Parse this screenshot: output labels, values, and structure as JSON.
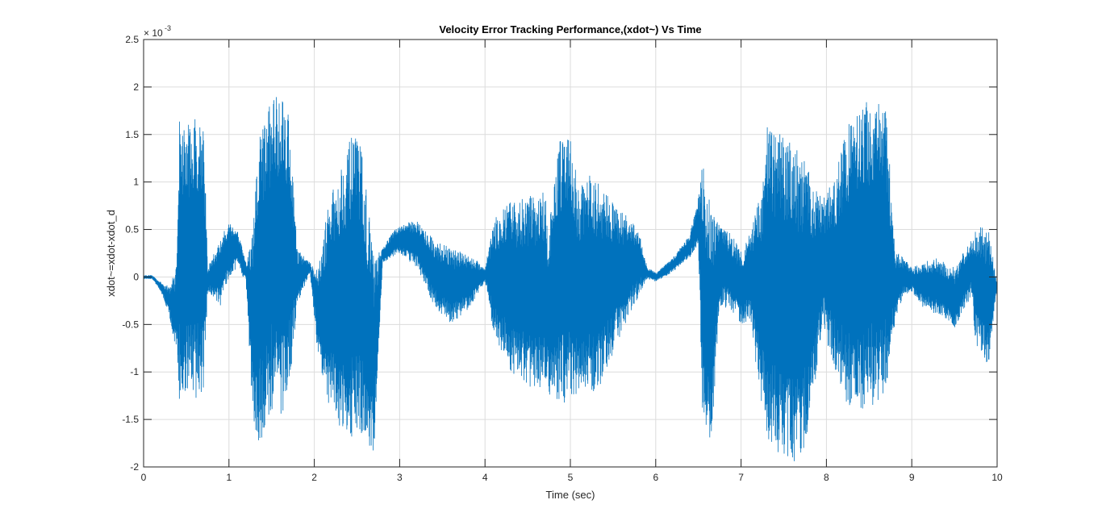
{
  "chart_data": {
    "type": "line",
    "title": "Velocity Error Tracking Performance,(xdot~) Vs Time",
    "xlabel": "Time (sec)",
    "ylabel": "xdot~=xdot-xdot_d",
    "y_exponent_base": "× 10",
    "y_exponent_power": "-3",
    "xlim": [
      0,
      10
    ],
    "ylim": [
      -2,
      2.5
    ],
    "xticks": [
      0,
      1,
      2,
      3,
      4,
      5,
      6,
      7,
      8,
      9,
      10
    ],
    "yticks": [
      -2,
      -1.5,
      -1,
      -0.5,
      0,
      0.5,
      1,
      1.5,
      2,
      2.5
    ],
    "grid": true,
    "line_color": "#0072BD",
    "series": [
      {
        "envelope_x": [
          0.0,
          0.1,
          0.2,
          0.3,
          0.38,
          0.42,
          0.5,
          0.6,
          0.7,
          0.75,
          0.9,
          1.0,
          1.1,
          1.2,
          1.28,
          1.35,
          1.5,
          1.6,
          1.7,
          1.8,
          1.95,
          2.05,
          2.15,
          2.3,
          2.45,
          2.55,
          2.7,
          2.8,
          2.9,
          3.0,
          3.2,
          3.4,
          3.6,
          3.8,
          4.0,
          4.1,
          4.3,
          4.5,
          4.6,
          4.7,
          4.75,
          4.85,
          5.0,
          5.1,
          5.2,
          5.3,
          5.5,
          5.7,
          5.8,
          5.9,
          6.0,
          6.2,
          6.4,
          6.5,
          6.55,
          6.65,
          6.75,
          6.85,
          7.0,
          7.1,
          7.25,
          7.3,
          7.5,
          7.6,
          7.7,
          7.8,
          7.95,
          8.1,
          8.25,
          8.4,
          8.55,
          8.7,
          8.8,
          8.9,
          9.0,
          9.1,
          9.3,
          9.5,
          9.7,
          9.75,
          9.9,
          10.0
        ],
        "envelope_upper": [
          0.02,
          0.02,
          -0.05,
          -0.1,
          0.1,
          1.7,
          1.6,
          1.7,
          1.75,
          0.1,
          0.4,
          0.6,
          0.5,
          0.15,
          0.5,
          1.5,
          1.9,
          2.05,
          1.8,
          0.3,
          0.15,
          0.1,
          0.7,
          1.2,
          1.5,
          1.4,
          0.2,
          0.3,
          0.45,
          0.55,
          0.6,
          0.4,
          0.3,
          0.25,
          0.1,
          0.6,
          0.8,
          0.85,
          0.9,
          0.9,
          0.5,
          1.4,
          1.55,
          0.9,
          1.1,
          1.05,
          0.8,
          0.6,
          0.5,
          0.1,
          0.05,
          0.2,
          0.45,
          0.85,
          1.2,
          0.7,
          0.55,
          0.5,
          0.3,
          0.45,
          0.95,
          1.6,
          1.5,
          1.45,
          1.3,
          1.15,
          0.8,
          1.1,
          1.6,
          1.85,
          1.85,
          1.8,
          0.3,
          0.2,
          0.1,
          0.15,
          0.2,
          0.1,
          0.4,
          0.55,
          0.5,
          -0.05
        ],
        "envelope_lower": [
          -0.02,
          -0.02,
          -0.15,
          -0.4,
          -0.8,
          -1.3,
          -1.25,
          -1.3,
          -1.35,
          -0.15,
          -0.3,
          0.0,
          0.1,
          -0.05,
          -1.5,
          -1.8,
          -1.4,
          -1.5,
          -1.3,
          -0.3,
          0.05,
          -0.9,
          -1.3,
          -1.6,
          -1.7,
          -1.65,
          -1.9,
          0.15,
          0.2,
          0.25,
          0.1,
          -0.3,
          -0.5,
          -0.35,
          -0.05,
          -0.6,
          -1.0,
          -1.15,
          -1.2,
          -1.15,
          -1.3,
          -1.4,
          -1.35,
          -1.2,
          -1.2,
          -1.25,
          -0.8,
          -0.4,
          -0.2,
          -0.02,
          -0.05,
          0.05,
          0.2,
          0.35,
          -1.55,
          -1.75,
          -0.3,
          -0.35,
          -0.5,
          -0.45,
          -1.4,
          -1.7,
          -1.95,
          -2.0,
          -1.85,
          -1.7,
          -0.5,
          -1.0,
          -1.4,
          -1.4,
          -1.35,
          -1.2,
          -0.5,
          -0.2,
          -0.15,
          -0.3,
          -0.4,
          -0.55,
          -0.2,
          -0.7,
          -0.95,
          -0.1
        ]
      }
    ]
  }
}
